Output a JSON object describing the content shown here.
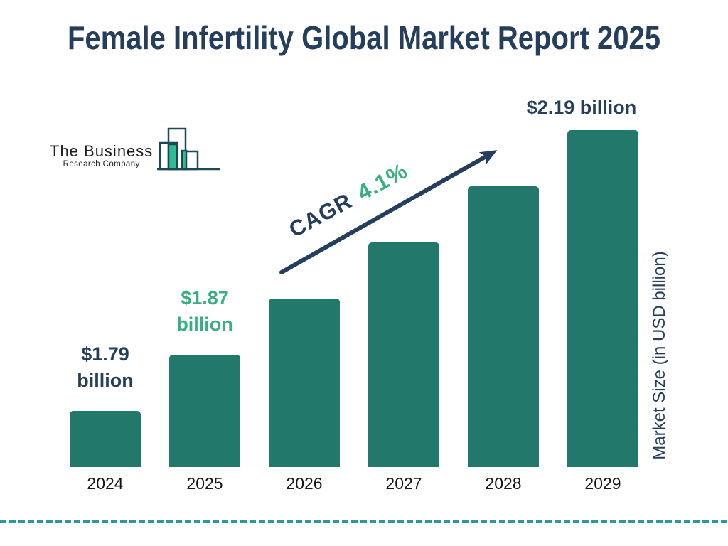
{
  "title": "Female Infertility Global Market Report 2025",
  "logo": {
    "line1": "The Business",
    "line2": "Research Company",
    "icon": "bar-chart-logo-icon"
  },
  "cagr": {
    "label": "CAGR",
    "value": "4.1%"
  },
  "y_axis_label": "Market Size (in USD billion)",
  "colors": {
    "bar": "#21786B",
    "navy": "#243E5C",
    "green": "#38AF7E",
    "dash": "#2B98A0",
    "logo_outline": "#1C4859",
    "logo_green": "#2EBD90"
  },
  "chart_data": {
    "type": "bar",
    "title": "Female Infertility Global Market Report 2025",
    "categories": [
      "2024",
      "2025",
      "2026",
      "2027",
      "2028",
      "2029"
    ],
    "values": [
      1.79,
      1.87,
      1.95,
      2.03,
      2.11,
      2.19
    ],
    "unit": "USD billion",
    "ylabel": "Market Size (in USD billion)",
    "xlabel": "",
    "grid": false,
    "legend": false,
    "axis_truncated": true,
    "annotation": "CAGR 4.1%",
    "data_labels": [
      {
        "category": "2024",
        "lines": [
          "$1.79",
          "billion"
        ],
        "color": "#243E5C"
      },
      {
        "category": "2025",
        "lines": [
          "$1.87",
          "billion"
        ],
        "color": "#38AF7E"
      },
      {
        "category": "2029",
        "lines": [
          "$2.19 billion"
        ],
        "color": "#243E5C"
      }
    ]
  }
}
